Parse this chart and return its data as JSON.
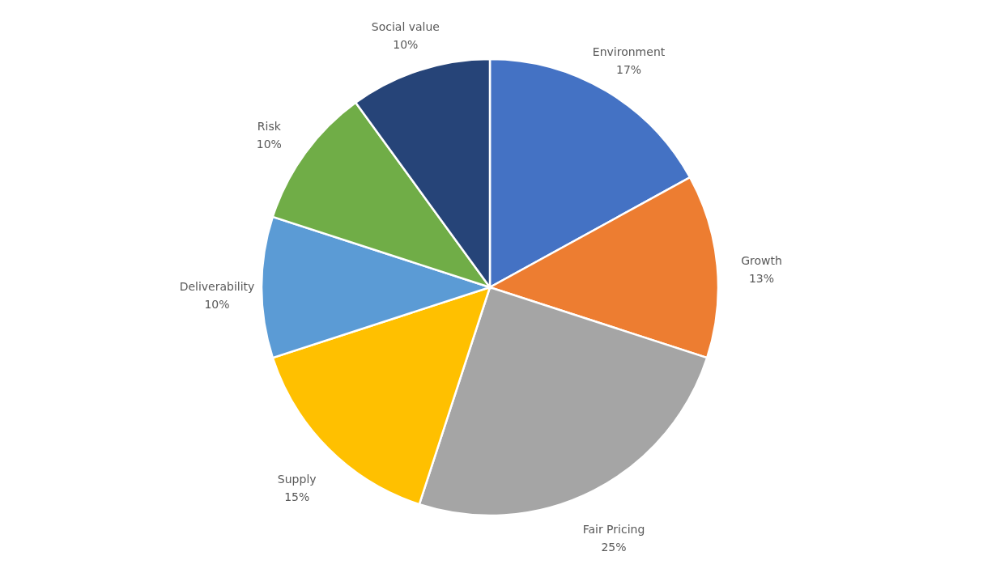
{
  "chart_data": {
    "type": "pie",
    "categories": [
      "Environment",
      "Growth",
      "Fair Pricing",
      "Supply",
      "Deliverability",
      "Risk",
      "Social value"
    ],
    "values": [
      17,
      13,
      25,
      15,
      10,
      10,
      10
    ],
    "colors": [
      "#4472c4",
      "#ed7d31",
      "#a5a5a5",
      "#ffc000",
      "#5b9bd5",
      "#70ad47",
      "#264478"
    ],
    "value_labels": [
      "17%",
      "13%",
      "25%",
      "15%",
      "10%",
      "10%",
      "10%"
    ],
    "legend": false
  }
}
